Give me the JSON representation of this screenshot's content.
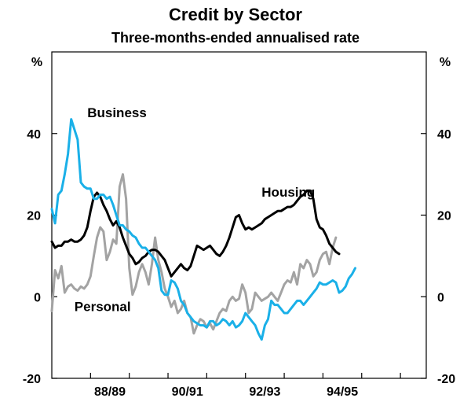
{
  "chart_data": {
    "type": "line",
    "title": "Credit by Sector",
    "subtitle": "Three-months-ended annualised rate",
    "ylabel_left": "%",
    "ylabel_right": "%",
    "ylim": [
      -20,
      60
    ],
    "yticks": [
      -20,
      0,
      20,
      40
    ],
    "ytick_labels": [
      "-20",
      "0",
      "20",
      "40"
    ],
    "xlim": [
      0,
      116
    ],
    "xticks": [
      {
        "pos": 12,
        "label": ""
      },
      {
        "pos": 24,
        "label": "88/89"
      },
      {
        "pos": 36,
        "label": ""
      },
      {
        "pos": 48,
        "label": "90/91"
      },
      {
        "pos": 60,
        "label": ""
      },
      {
        "pos": 72,
        "label": "92/93"
      },
      {
        "pos": 84,
        "label": ""
      },
      {
        "pos": 96,
        "label": "94/95"
      },
      {
        "pos": 108,
        "label": ""
      }
    ],
    "x_label_offset": 6,
    "series": [
      {
        "name": "Business",
        "color": "#1ab0e8",
        "width": 3,
        "label": {
          "text": "Business",
          "x": 11,
          "y": 44
        },
        "points": [
          [
            0,
            21.5
          ],
          [
            1,
            18
          ],
          [
            2,
            25
          ],
          [
            3,
            26
          ],
          [
            4,
            30
          ],
          [
            5,
            35
          ],
          [
            6,
            43.5
          ],
          [
            7,
            41
          ],
          [
            8,
            38.5
          ],
          [
            9,
            28
          ],
          [
            10,
            27
          ],
          [
            11,
            26.5
          ],
          [
            12,
            26.5
          ],
          [
            13,
            24
          ],
          [
            14,
            24
          ],
          [
            15,
            25
          ],
          [
            16,
            25
          ],
          [
            17,
            24
          ],
          [
            18,
            24.5
          ],
          [
            19,
            22.5
          ],
          [
            20,
            20
          ],
          [
            21,
            17.5
          ],
          [
            22,
            17.5
          ],
          [
            23,
            16.5
          ],
          [
            24,
            16
          ],
          [
            25,
            15
          ],
          [
            26,
            14.5
          ],
          [
            27,
            13
          ],
          [
            28,
            12
          ],
          [
            29,
            12
          ],
          [
            30,
            11
          ],
          [
            31,
            10
          ],
          [
            32,
            9
          ],
          [
            33,
            7
          ],
          [
            34,
            1.5
          ],
          [
            35,
            0.5
          ],
          [
            36,
            0.5
          ],
          [
            37,
            4
          ],
          [
            38,
            3.5
          ],
          [
            39,
            2
          ],
          [
            40,
            -1
          ],
          [
            41,
            -2
          ],
          [
            42,
            -4
          ],
          [
            43,
            -5
          ],
          [
            44,
            -6
          ],
          [
            45,
            -6.5
          ],
          [
            46,
            -7
          ],
          [
            47,
            -7
          ],
          [
            48,
            -7.5
          ],
          [
            49,
            -6
          ],
          [
            50,
            -6
          ],
          [
            51,
            -7
          ],
          [
            52,
            -6.5
          ],
          [
            53,
            -5.5
          ],
          [
            54,
            -6
          ],
          [
            55,
            -7
          ],
          [
            56,
            -6
          ],
          [
            57,
            -7.5
          ],
          [
            58,
            -7
          ],
          [
            59,
            -6
          ],
          [
            60,
            -4
          ],
          [
            61,
            -5
          ],
          [
            62,
            -6
          ],
          [
            63,
            -7
          ],
          [
            64,
            -9
          ],
          [
            65,
            -10.5
          ],
          [
            66,
            -7
          ],
          [
            67,
            -5.5
          ],
          [
            68,
            -1
          ],
          [
            69,
            -2
          ],
          [
            70,
            -2
          ],
          [
            71,
            -3
          ],
          [
            72,
            -4
          ],
          [
            73,
            -4
          ],
          [
            74,
            -3
          ],
          [
            75,
            -2
          ],
          [
            76,
            -1
          ],
          [
            77,
            -1
          ],
          [
            78,
            -2
          ],
          [
            79,
            -1
          ],
          [
            80,
            0
          ],
          [
            81,
            1
          ],
          [
            82,
            2
          ],
          [
            83,
            3.5
          ],
          [
            84,
            3
          ],
          [
            85,
            3
          ],
          [
            86,
            3.5
          ],
          [
            87,
            4
          ],
          [
            88,
            3.5
          ],
          [
            89,
            1
          ],
          [
            90,
            1.5
          ],
          [
            91,
            2.5
          ],
          [
            92,
            4.5
          ],
          [
            93,
            5.5
          ],
          [
            94,
            7
          ]
        ]
      },
      {
        "name": "Housing",
        "color": "#000000",
        "width": 3,
        "label": {
          "text": "Housing",
          "x": 65,
          "y": 24.5
        },
        "points": [
          [
            0,
            13.5
          ],
          [
            1,
            12
          ],
          [
            2,
            12.5
          ],
          [
            3,
            12.5
          ],
          [
            4,
            13.5
          ],
          [
            5,
            13.5
          ],
          [
            6,
            14
          ],
          [
            7,
            13.5
          ],
          [
            8,
            13.5
          ],
          [
            9,
            14
          ],
          [
            10,
            15
          ],
          [
            11,
            17
          ],
          [
            12,
            21
          ],
          [
            13,
            24.5
          ],
          [
            14,
            25.5
          ],
          [
            15,
            24.5
          ],
          [
            16,
            22.5
          ],
          [
            17,
            21
          ],
          [
            18,
            19
          ],
          [
            19,
            17.5
          ],
          [
            20,
            18.5
          ],
          [
            21,
            17
          ],
          [
            22,
            14.5
          ],
          [
            23,
            12.5
          ],
          [
            24,
            10.5
          ],
          [
            25,
            9.5
          ],
          [
            26,
            8
          ],
          [
            27,
            8.5
          ],
          [
            28,
            9.5
          ],
          [
            29,
            10
          ],
          [
            30,
            11
          ],
          [
            31,
            11.5
          ],
          [
            32,
            11.5
          ],
          [
            33,
            11
          ],
          [
            34,
            10
          ],
          [
            35,
            9
          ],
          [
            36,
            7
          ],
          [
            37,
            5
          ],
          [
            38,
            6
          ],
          [
            39,
            7
          ],
          [
            40,
            8
          ],
          [
            41,
            7
          ],
          [
            42,
            6.5
          ],
          [
            43,
            7.5
          ],
          [
            44,
            10
          ],
          [
            45,
            12.5
          ],
          [
            46,
            12
          ],
          [
            47,
            11.5
          ],
          [
            48,
            12
          ],
          [
            49,
            12.5
          ],
          [
            50,
            11.5
          ],
          [
            51,
            10.5
          ],
          [
            52,
            10
          ],
          [
            53,
            11
          ],
          [
            54,
            12.5
          ],
          [
            55,
            14.5
          ],
          [
            56,
            17
          ],
          [
            57,
            19.5
          ],
          [
            58,
            20
          ],
          [
            59,
            18
          ],
          [
            60,
            16.5
          ],
          [
            61,
            17
          ],
          [
            62,
            16.5
          ],
          [
            63,
            17
          ],
          [
            64,
            17.5
          ],
          [
            65,
            18
          ],
          [
            66,
            19
          ],
          [
            67,
            19.5
          ],
          [
            68,
            20
          ],
          [
            69,
            20.5
          ],
          [
            70,
            21
          ],
          [
            71,
            21
          ],
          [
            72,
            21.5
          ],
          [
            73,
            22
          ],
          [
            74,
            22
          ],
          [
            75,
            22.5
          ],
          [
            76,
            23.5
          ],
          [
            77,
            24.5
          ],
          [
            78,
            25
          ],
          [
            79,
            26
          ],
          [
            80,
            26
          ],
          [
            81,
            24
          ],
          [
            82,
            19
          ],
          [
            83,
            17
          ],
          [
            84,
            16.5
          ],
          [
            85,
            15
          ],
          [
            86,
            13
          ],
          [
            87,
            12
          ],
          [
            88,
            11
          ],
          [
            89,
            10.5
          ]
        ]
      },
      {
        "name": "Personal",
        "color": "#a3a3a3",
        "width": 3,
        "label": {
          "text": "Personal",
          "x": 7,
          "y": -3.5
        },
        "points": [
          [
            0,
            -3.5
          ],
          [
            1,
            6.5
          ],
          [
            2,
            4.5
          ],
          [
            3,
            7.5
          ],
          [
            4,
            1
          ],
          [
            5,
            2.5
          ],
          [
            6,
            3
          ],
          [
            7,
            2
          ],
          [
            8,
            1.5
          ],
          [
            9,
            2.5
          ],
          [
            10,
            2
          ],
          [
            11,
            3
          ],
          [
            12,
            5
          ],
          [
            13,
            10
          ],
          [
            14,
            14.5
          ],
          [
            15,
            17
          ],
          [
            16,
            16
          ],
          [
            17,
            9
          ],
          [
            18,
            11
          ],
          [
            19,
            14
          ],
          [
            20,
            13
          ],
          [
            21,
            27
          ],
          [
            22,
            30
          ],
          [
            23,
            24
          ],
          [
            24,
            7
          ],
          [
            25,
            0.5
          ],
          [
            26,
            2.5
          ],
          [
            27,
            6
          ],
          [
            28,
            8
          ],
          [
            29,
            6
          ],
          [
            30,
            3
          ],
          [
            31,
            8
          ],
          [
            32,
            14.5
          ],
          [
            33,
            9
          ],
          [
            34,
            6
          ],
          [
            35,
            2
          ],
          [
            36,
            0
          ],
          [
            37,
            -2.5
          ],
          [
            38,
            -1
          ],
          [
            39,
            -4
          ],
          [
            40,
            -3
          ],
          [
            41,
            -1
          ],
          [
            42,
            -4
          ],
          [
            43,
            -5
          ],
          [
            44,
            -9
          ],
          [
            45,
            -7
          ],
          [
            46,
            -5.5
          ],
          [
            47,
            -6
          ],
          [
            48,
            -7.5
          ],
          [
            49,
            -6.5
          ],
          [
            50,
            -8
          ],
          [
            51,
            -6
          ],
          [
            52,
            -4
          ],
          [
            53,
            -3
          ],
          [
            54,
            -3.5
          ],
          [
            55,
            -1
          ],
          [
            56,
            0
          ],
          [
            57,
            -1
          ],
          [
            58,
            -0.5
          ],
          [
            59,
            3
          ],
          [
            60,
            1
          ],
          [
            61,
            -4
          ],
          [
            62,
            -3
          ],
          [
            63,
            1
          ],
          [
            64,
            0
          ],
          [
            65,
            -1
          ],
          [
            66,
            -0.5
          ],
          [
            67,
            0
          ],
          [
            68,
            1
          ],
          [
            69,
            0
          ],
          [
            70,
            -1
          ],
          [
            71,
            1
          ],
          [
            72,
            3
          ],
          [
            73,
            4
          ],
          [
            74,
            3.5
          ],
          [
            75,
            6
          ],
          [
            76,
            3
          ],
          [
            77,
            8
          ],
          [
            78,
            7
          ],
          [
            79,
            9
          ],
          [
            80,
            8
          ],
          [
            81,
            5
          ],
          [
            82,
            6
          ],
          [
            83,
            9
          ],
          [
            84,
            10.5
          ],
          [
            85,
            11
          ],
          [
            86,
            8
          ],
          [
            87,
            12
          ],
          [
            88,
            14.5
          ]
        ]
      }
    ]
  }
}
